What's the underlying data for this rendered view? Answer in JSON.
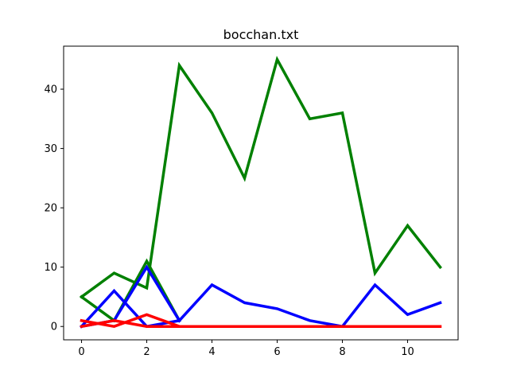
{
  "chart_data": {
    "type": "line",
    "title": "bocchan.txt",
    "xlabel": "",
    "ylabel": "",
    "xlim": [
      -0.55,
      11.55
    ],
    "ylim": [
      -2.25,
      47.25
    ],
    "xticks": [
      0,
      2,
      4,
      6,
      8,
      10
    ],
    "yticks": [
      0,
      10,
      20,
      30,
      40
    ],
    "grid": false,
    "series": [
      {
        "color": "#008000",
        "x": [
          0,
          1,
          2,
          3,
          4,
          5,
          6,
          7,
          8,
          9,
          10,
          11
        ],
        "y": [
          5,
          9,
          6.5,
          44,
          36,
          25,
          45,
          35,
          36,
          9,
          17,
          10
        ]
      },
      {
        "color": "#008000",
        "x": [
          0,
          1,
          2,
          3
        ],
        "y": [
          5,
          1,
          11,
          1
        ]
      },
      {
        "color": "#0000ff",
        "x": [
          0,
          1,
          2,
          3,
          4,
          5,
          6,
          7,
          8,
          9,
          10,
          11
        ],
        "y": [
          0,
          1,
          10,
          1,
          7,
          4,
          3,
          1,
          0,
          7,
          2,
          4
        ]
      },
      {
        "color": "#0000ff",
        "x": [
          0,
          1,
          2,
          3
        ],
        "y": [
          0,
          6,
          0,
          1
        ]
      },
      {
        "color": "#ff0000",
        "x": [
          0,
          1,
          2,
          3,
          4,
          5,
          6,
          7,
          8,
          9,
          10,
          11
        ],
        "y": [
          1,
          0,
          2,
          0,
          0,
          0,
          0,
          0,
          0,
          0,
          0,
          0
        ]
      },
      {
        "color": "#ff0000",
        "x": [
          0,
          1,
          2,
          3
        ],
        "y": [
          0,
          1,
          0,
          0
        ]
      }
    ]
  }
}
